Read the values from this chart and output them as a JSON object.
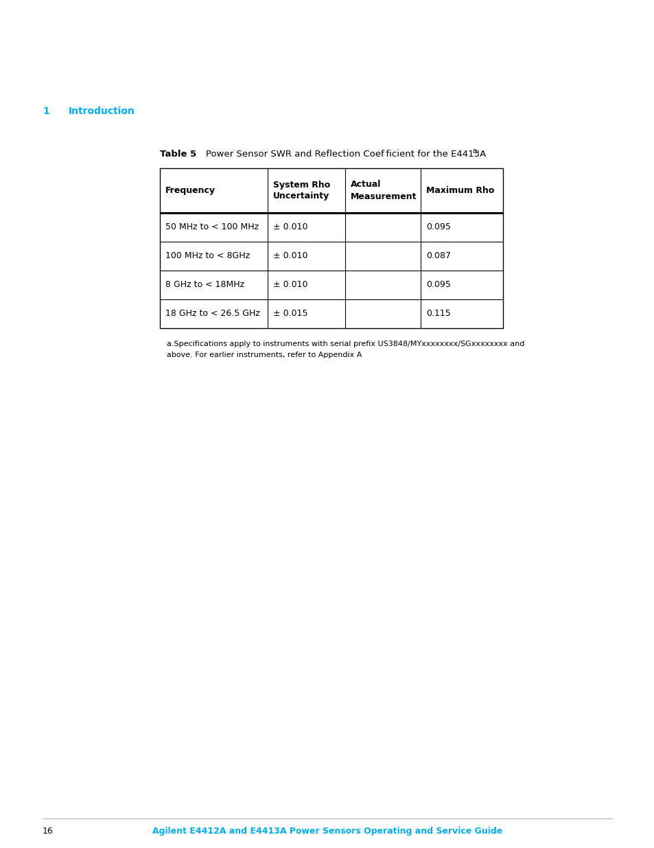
{
  "page_number": "16",
  "section_number": "1",
  "section_title": "Introduction",
  "section_color": "#00AEEF",
  "table_label": "Table 5",
  "table_title": "Power Sensor SWR and Reflection Coef ficient for the E4413A",
  "table_title_superscript": "a",
  "col_headers": [
    "Frequency",
    "System Rho\nUncertainty",
    "Actual\nMeasurement",
    "Maximum Rho"
  ],
  "rows": [
    [
      "50 MHz to < 100 MHz",
      "± 0.010",
      "",
      "0.095"
    ],
    [
      "100 MHz to < 8GHz",
      "± 0.010",
      "",
      "0.087"
    ],
    [
      "8 GHz to < 18MHz",
      "± 0.010",
      "",
      "0.095"
    ],
    [
      "18 GHz to < 26.5 GHz",
      "± 0.015",
      "",
      "0.115"
    ]
  ],
  "footnote_line1": "a.Specifications apply to instruments with serial prefix US3848/MYxxxxxxxx/SGxxxxxxxx and",
  "footnote_line2": "above. For earlier instruments, refer to Appendix A",
  "footer_text": "Agilent E4412A and E4413A Power Sensors Operating and Service Guide",
  "footer_color": "#00AEEF",
  "bg_color": "#ffffff",
  "border_color": "#000000",
  "text_color": "#000000",
  "header_fontsize": 9,
  "body_fontsize": 9,
  "footnote_fontsize": 8,
  "footer_fontsize": 9,
  "section_fontsize": 10,
  "table_label_fontsize": 9.5,
  "table_title_fontsize": 9.5
}
